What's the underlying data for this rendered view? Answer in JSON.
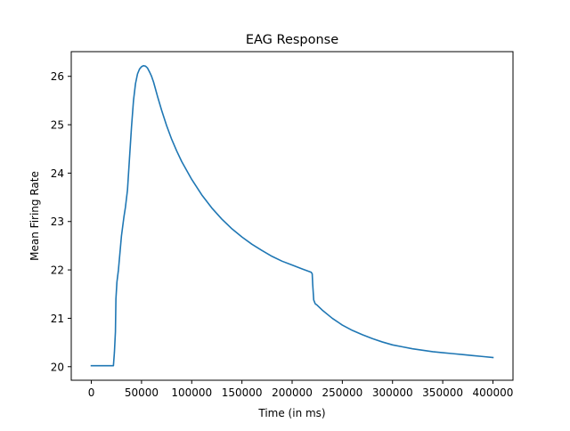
{
  "chart_data": {
    "type": "line",
    "title": "EAG Response",
    "xlabel": "Time (in ms)",
    "ylabel": "Mean Firing Rate",
    "xlim": [
      -20000,
      420000
    ],
    "ylim": [
      19.72,
      26.51
    ],
    "xticks": [
      0,
      50000,
      100000,
      150000,
      200000,
      250000,
      300000,
      350000,
      400000
    ],
    "xtick_labels": [
      "0",
      "50000",
      "100000",
      "150000",
      "200000",
      "250000",
      "300000",
      "350000",
      "400000"
    ],
    "yticks": [
      20,
      21,
      22,
      23,
      24,
      25,
      26
    ],
    "ytick_labels": [
      "20",
      "21",
      "22",
      "23",
      "24",
      "25",
      "26"
    ],
    "grid": false,
    "series": [
      {
        "name": "",
        "color": "#1f77b4",
        "x": [
          0,
          21000,
          22000,
          23000,
          24000,
          24500,
          25500,
          27000,
          30000,
          32500,
          34000,
          36000,
          38000,
          40000,
          42000,
          44000,
          46000,
          48000,
          50000,
          52000,
          54000,
          56000,
          58000,
          60000,
          62000,
          64000,
          66000,
          70000,
          75000,
          80000,
          85000,
          90000,
          100000,
          110000,
          120000,
          130000,
          140000,
          150000,
          160000,
          170000,
          180000,
          190000,
          200000,
          210000,
          219000,
          220000,
          220500,
          221500,
          223000,
          225000,
          230000,
          240000,
          250000,
          260000,
          270000,
          280000,
          290000,
          300000,
          310000,
          320000,
          330000,
          340000,
          350000,
          360000,
          370000,
          380000,
          390000,
          400000
        ],
        "y": [
          20.02,
          20.02,
          20.02,
          20.3,
          20.72,
          21.4,
          21.75,
          22.0,
          22.7,
          23.1,
          23.3,
          23.65,
          24.3,
          24.95,
          25.5,
          25.85,
          26.05,
          26.15,
          26.2,
          26.22,
          26.21,
          26.17,
          26.09,
          26.0,
          25.88,
          25.73,
          25.58,
          25.3,
          24.98,
          24.7,
          24.46,
          24.24,
          23.87,
          23.55,
          23.28,
          23.05,
          22.85,
          22.68,
          22.53,
          22.4,
          22.28,
          22.18,
          22.1,
          22.02,
          21.95,
          21.92,
          21.7,
          21.38,
          21.3,
          21.27,
          21.17,
          21.0,
          20.86,
          20.75,
          20.66,
          20.58,
          20.51,
          20.45,
          20.41,
          20.37,
          20.34,
          20.31,
          20.29,
          20.27,
          20.25,
          20.23,
          20.21,
          20.19
        ]
      }
    ]
  }
}
